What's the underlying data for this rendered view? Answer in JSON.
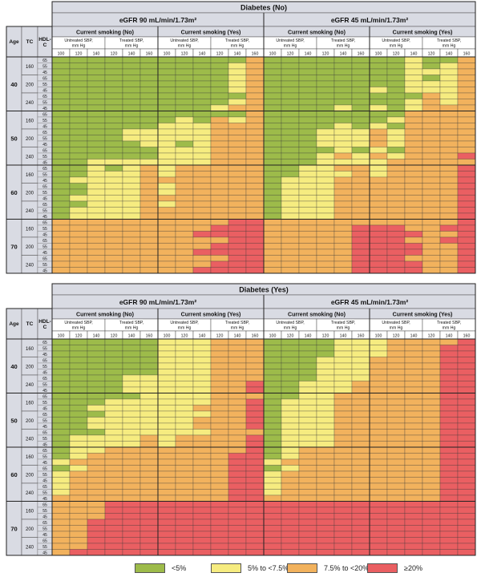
{
  "colors": {
    "green": "#9dbb4a",
    "yellow": "#f6ec80",
    "orange": "#f2b25d",
    "red": "#ea5f62",
    "header_gray": "#d9dbe3",
    "dark_header": "#b9bdca"
  },
  "legend": [
    {
      "label": "<5%",
      "color_key": "green"
    },
    {
      "label": "5% to <7.5%",
      "color_key": "yellow"
    },
    {
      "label": "7.5% to <20%",
      "color_key": "orange"
    },
    {
      "label": "≥20%",
      "color_key": "red"
    }
  ],
  "chart_data": [
    {
      "type": "heatmap",
      "title": "Diabetes (No)",
      "row_headers": {
        "age": "Age",
        "tc": "TC",
        "hdl": "HDL-C"
      },
      "ages": [
        "40",
        "50",
        "60",
        "70"
      ],
      "tc_levels": [
        "160",
        "200",
        "240"
      ],
      "hdl_levels": [
        "65",
        "55",
        "45"
      ],
      "egfr_groups": [
        "eGFR 90 mL/min/1.73m²",
        "eGFR 45 mL/min/1.73m²"
      ],
      "smoking_groups": [
        "Current smoking (No)",
        "Current smoking (Yes)"
      ],
      "sbp_groups": [
        "Untreated SBP, mm Hg",
        "Treated SBP, mm Hg"
      ],
      "sbp_values": [
        "100",
        "120",
        "140",
        "120",
        "140",
        "160"
      ],
      "legend_codes": {
        "G": "<5%",
        "Y": "5% to <7.5%",
        "O": "7.5% to <20%",
        "R": "≥20%"
      },
      "grid": [
        "GGGGGGGGGGGO GGGGGGGGYGGO",
        "GGGGGGGGGGYO GGGGGGGGYGYO",
        "GGGGGGGGGGYO GGGGGGGGYYYO",
        "GGGGGGGGGGYO GGGGGGGGYGYO",
        "GGGGGGGGGGYO GGGGGGGGYYYO",
        "GGGGGGGGGGYO GGGGGGYGYYYO",
        "GGGGGGGGGGGO GGGGGGGGGOYO",
        "GGGGGGGGGGYO GGGGGGGGYOYO",
        "GGGGGGGGGYOO GGGGYGYGYOOO",
        "GGGGGGGGGGGO GGGGGGGGOOOO",
        "GGGGGGGYGOYO GGGGGGGYOOOO",
        "GGGGGGYYYOOO GGGGYGYGOOOO",
        "GGGGYYYYYOOO GGGYYYOYOOOO",
        "GGGGYYYYYOOO GGGYYYOYOOOO",
        "GGGGGYYGYOOO GGGYYYOYOOOO",
        "GGGGGGYYYOOO GGGGYGYGOOOO",
        "GGGGGGYYYOOO GGGYOYOYOOOR",
        "GGYYYYYYYOOO GGGYYYYOOOOO",
        "GGYGYOYOOOOO GGYYOOYOOOOR",
        "GGYYYOYOOOOO GGYYYOYOOOOR",
        "GYYYYOOOOOOO GYYYOOOOOOOR",
        "GGYYYOYOOOOO GYYYOOOOOOOR",
        "GGYYYOYOOOOO GYYYOOOOOOOR",
        "GYYYYOOOOOOO GYYYOOOOOOOR",
        "GGYYYOYOOOOO GYYYOOOOOOOR",
        "GYYYYOOOOOOO GYYYOOOOOOOR",
        "GYYYYOOOOOOO GYYYOOOOOOOR",
        "OOOOOOOOOORR OOOOOOOOOOOR",
        "OOOOOOOOORRR OOOOORRROORR",
        "OOOOOOOORRRR OOOOORRRROOR",
        "OOOOOOOOOORR OOOOORRROORR",
        "OOOOOOOOORRR OOOOORRRROOR",
        "OOOOOOOORRRR OOOOORRRROOR",
        "OOOOOOOOOORR OOOOORRROOOR",
        "OOOOOOOOORRR OOOOORRRROOR",
        "OOOOOOOORRRR OOOOORRRROOR"
      ]
    },
    {
      "type": "heatmap",
      "title": "Diabetes (Yes)",
      "row_headers": {
        "age": "Age",
        "tc": "TC",
        "hdl": "HDL-C"
      },
      "ages": [
        "40",
        "50",
        "60",
        "70"
      ],
      "tc_levels": [
        "160",
        "200",
        "240"
      ],
      "hdl_levels": [
        "65",
        "55",
        "45"
      ],
      "egfr_groups": [
        "eGFR 90 mL/min/1.73m²",
        "eGFR 45 mL/min/1.73m²"
      ],
      "smoking_groups": [
        "Current smoking (No)",
        "Current smoking (Yes)"
      ],
      "sbp_groups": [
        "Untreated SBP, mm Hg",
        "Treated SBP, mm Hg"
      ],
      "sbp_values": [
        "100",
        "120",
        "140",
        "120",
        "140",
        "160"
      ],
      "legend_codes": {
        "G": "<5%",
        "Y": "5% to <7.5%",
        "O": "7.5% to <20%",
        "R": "≥20%"
      },
      "grid": [
        "GGGGGGYYYOOO GGGGYYYOOOOR",
        "GGGGGGYYYOOO GGGGYYYOOORR",
        "GGGGGGYYYOOO GGGGYYYOOORR",
        "GGGGGGYYYOOO GGGYYYOOOORR",
        "GGGGGGYYYOOO GGGYYYOOOORR",
        "GGGGGGYYYOOO GGGYYYOOOORR",
        "GGGGYYYYYOOO GGGYYYOOOORR",
        "GGGGYYYYYOOR GGYYYOOOOORR",
        "GGGGYYYYYOOR GGYYYOOOOORR",
        "GGGGGYYYYOOO GGYYOOOOOORR",
        "GGGYYYYYYOOR GYYYOOOOOORR",
        "GGYYYYYYOOOR GYYYOOOOOORR",
        "GGGYYYYYYOOR GYYYOOOOOORR",
        "GGYYYYYYOOOR GYYYOOOOOORR",
        "GGYYYYYYOOOR GYYYOOOOOORR",
        "GGGYYYYYYOOO GYYYOOOOOORR",
        "GYYYYOYOOOOR GYYYOOOOOORR",
        "GYYYYOYOOOOR GYYYOOOOOORR",
        "GYYOOOOOOOOR GYOOOOOOOORR",
        "GYOOOOOOOORR GYOOOOOOOORR",
        "YOOOOOOOOORR YOOOOOOOOORR",
        "GYOOOOOOOORR GYOOOOOOOORR",
        "YOOOOOOOOORR YOOOOOOOOORR",
        "YOOOOOOOOORR YOOOOOOOOORR",
        "YOOOOOOOOORR YOOOOOOOOORR",
        "YOOOOOOOOORR YOOOOOOOOORR",
        "OOOOOOOOOORR OOOOOOOOOORR",
        "OOORRRRRRRRR RRRRRRRRRRRR",
        "OOORRRRRRRRR RRRRRRRRRRRR",
        "OOORRRRRRRRR RRRRRRRRRRRR",
        "OORRRRRRRRRR RRRRRRRRRRRR",
        "OORRRRRRRRRR RRRRRRRRRRRR",
        "OORRRRRRRRRR RRRRRRRRRRRR",
        "OORRRRRRRRRR RRRRRRRRRRRR",
        "OORRRRRRRRRR RRRRRRRRRRRR",
        "ORRRRRRRRRRR RRRRRRRRRRRR"
      ]
    }
  ]
}
